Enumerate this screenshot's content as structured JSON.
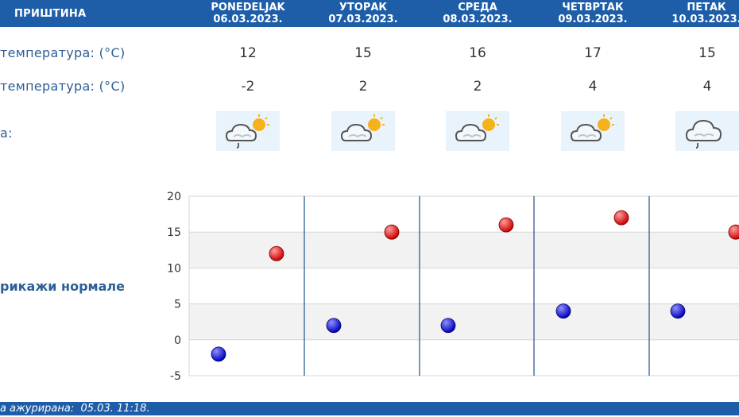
{
  "header": {
    "city": "ПРИШТИНА",
    "days": [
      {
        "name": "PONEDELJAK",
        "date": "06.03.2023."
      },
      {
        "name": "УТОРАК",
        "date": "07.03.2023."
      },
      {
        "name": "СРЕДА",
        "date": "08.03.2023."
      },
      {
        "name": "ЧЕТВРТАК",
        "date": "09.03.2023."
      },
      {
        "name": "ПЕТАК",
        "date": "10.03.2023."
      }
    ]
  },
  "rows": {
    "max_label": "температура: (°C)",
    "min_label": "температура: (°C)",
    "icon_label": "а:"
  },
  "forecast": {
    "max": [
      "12",
      "15",
      "16",
      "17",
      "15"
    ],
    "min": [
      "-2",
      "2",
      "2",
      "4",
      "4"
    ],
    "icons": [
      "cloud-sun-rain-icon",
      "cloud-sun-icon",
      "cloud-sun-icon",
      "cloud-sun-icon",
      "cloud-rain-icon"
    ]
  },
  "normals_link": "рикажи нормале",
  "footer": {
    "updated_label": "а ажурирана:",
    "updated_value": "05.03. 11:18."
  },
  "colors": {
    "header_bg": "#1e5ea8",
    "label": "#2d5f95",
    "max_point": "#cc0000",
    "min_point": "#0000bb"
  },
  "chart_data": {
    "type": "scatter",
    "yticks": [
      "20",
      "15",
      "10",
      "5",
      "0",
      "-5"
    ],
    "ylim": [
      -5,
      20
    ],
    "series": [
      {
        "values": [
          12,
          15,
          16,
          17,
          15
        ]
      },
      {
        "values": [
          -2,
          2,
          2,
          4,
          4
        ]
      }
    ]
  }
}
